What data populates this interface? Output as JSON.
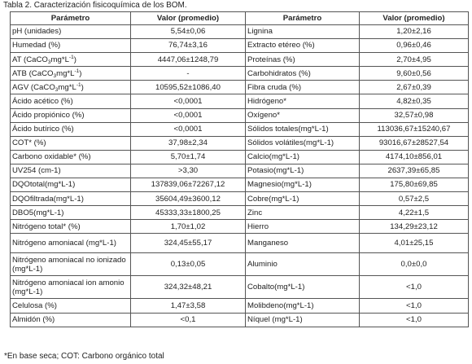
{
  "caption": "Tabla 2. Caracterización fisicoquímica de los BOM.",
  "headers": [
    "Parámetro",
    "Valor (promedio)",
    "Parámetro",
    "Valor (promedio)"
  ],
  "rows": [
    {
      "p1": "pH (unidades)",
      "v1": "5,54±0,06",
      "p2": "Lignina",
      "v2": "1,20±2,16"
    },
    {
      "p1": "Humedad (%)",
      "v1": "76,74±3,16",
      "p2": "Extracto etéreo (%)",
      "v2": "0,96±0,46"
    },
    {
      "p1a": "AT (CaCO",
      "p1s": "3",
      "p1b": "mg*L",
      "p1c": "-1",
      "p1d": ")",
      "v1": "4447,06±1248,79",
      "p2": "Proteínas (%)",
      "v2": "2,70±4,95"
    },
    {
      "p1a": "ATB (CaCO",
      "p1s": "3",
      "p1b": "mg*L",
      "p1c": "-1",
      "p1d": ")",
      "v1": "-",
      "p2": "Carbohidratos (%)",
      "v2": "9,60±0,56"
    },
    {
      "p1a": "AGV (CaCO",
      "p1s": "3",
      "p1b": "mg*L",
      "p1c": "-1",
      "p1d": ")",
      "v1": "10595,52±1086,40",
      "p2": "Fibra cruda (%)",
      "v2": "2,67±0,39"
    },
    {
      "p1": "Ácido acético (%)",
      "v1": "<0,0001",
      "p2": "Hidrógeno*",
      "v2": "4,82±0,35"
    },
    {
      "p1": "Ácido propiónico (%)",
      "v1": "<0,0001",
      "p2": "Oxígeno*",
      "v2": "32,57±0,98"
    },
    {
      "p1": "Ácido butírico (%)",
      "v1": "<0,0001",
      "p2": "Sólidos totales(mg*L-1)",
      "v2": "113036,67±15240,67"
    },
    {
      "p1": "COT* (%)",
      "v1": "37,98±2,34",
      "p2": "Sólidos volátiles(mg*L-1)",
      "v2": "93016,67±28527,54"
    },
    {
      "p1": "Carbono oxidable* (%)",
      "v1": "5,70±1,74",
      "p2": "Calcio(mg*L-1)",
      "v2": "4174,10±856,01"
    },
    {
      "p1": "UV254 (cm-1)",
      "v1": ">3,30",
      "p2": "Potasio(mg*L-1)",
      "v2": "2637,39±65,85"
    },
    {
      "p1": "DQOtotal(mg*L-1)",
      "v1": "137839,06±72267,12",
      "p2": "Magnesio(mg*L-1)",
      "v2": "175,80±69,85"
    },
    {
      "p1": "DQOfiltrada(mg*L-1)",
      "v1": "35604,49±3600,12",
      "p2": "Cobre(mg*L-1)",
      "v2": "0,57±2,5"
    },
    {
      "p1": "DBO5(mg*L-1)",
      "v1": "45333,33±1800,25",
      "p2": "Zinc",
      "v2": "4,22±1,5"
    },
    {
      "p1": "Nitrógeno total* (%)",
      "v1": "1,70±1,02",
      "p2": "Hierro",
      "v2": "134,29±23,12"
    },
    {
      "p1": "Nitrógeno amoniacal (mg*L-1)",
      "v1": "324,45±55,17",
      "p2": "Manganeso",
      "v2": "4,01±25,15"
    },
    {
      "p1": "Nitrógeno amoniacal no ionizado (mg*L-1)",
      "v1": "0,13±0,05",
      "p2": "Aluminio",
      "v2": "0,0±0,0"
    },
    {
      "p1": "Nitrógeno amoniacal ion amonio (mg*L-1)",
      "v1": "324,32±48,21",
      "p2": "Cobalto(mg*L-1)",
      "v2": "<1,0"
    },
    {
      "p1": "Celulosa (%)",
      "v1": "1,47±3,58",
      "p2": "Molibdeno(mg*L-1)",
      "v2": "<1,0"
    },
    {
      "p1": "Almidón (%)",
      "v1": "<0,1",
      "p2": "Níquel (mg*L-1)",
      "v2": "<1,0"
    }
  ],
  "footnote": "*En base seca; COT: Carbono orgánico total"
}
